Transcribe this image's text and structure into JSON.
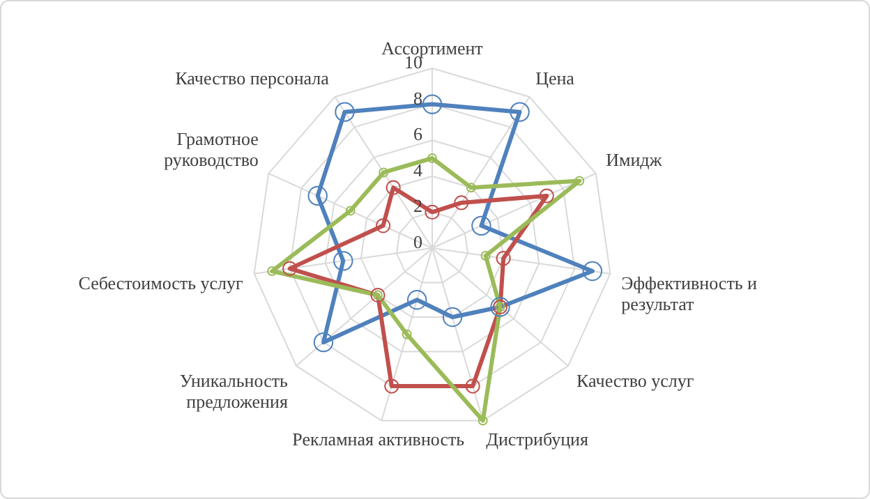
{
  "chart_data": {
    "type": "radar",
    "categories": [
      "Ассортимент",
      "Цена",
      "Имидж",
      "Эффективность и\nрезультат",
      "Качество услуг",
      "Дистрибуция",
      "Рекламная активность",
      "Уникальность\nпредложения",
      "Себестоимость услуг",
      "Грамотное\nруководство",
      "Качество персонала"
    ],
    "series": [
      {
        "color": "#4f81bd",
        "values": [
          8,
          9,
          3,
          9,
          5,
          4,
          3,
          8,
          5,
          7,
          9
        ]
      },
      {
        "color": "#c0504d",
        "values": [
          2,
          3,
          7,
          4,
          5,
          8,
          8,
          4,
          8,
          3,
          4
        ]
      },
      {
        "color": "#9bbb59",
        "values": [
          5,
          4,
          9,
          3,
          5,
          10,
          5,
          4,
          9,
          5,
          5
        ]
      }
    ],
    "ylim": [
      0,
      10
    ],
    "yticks": [
      0,
      2,
      4,
      6,
      8,
      10
    ],
    "grid": true,
    "marker": "circle",
    "legend": false
  }
}
